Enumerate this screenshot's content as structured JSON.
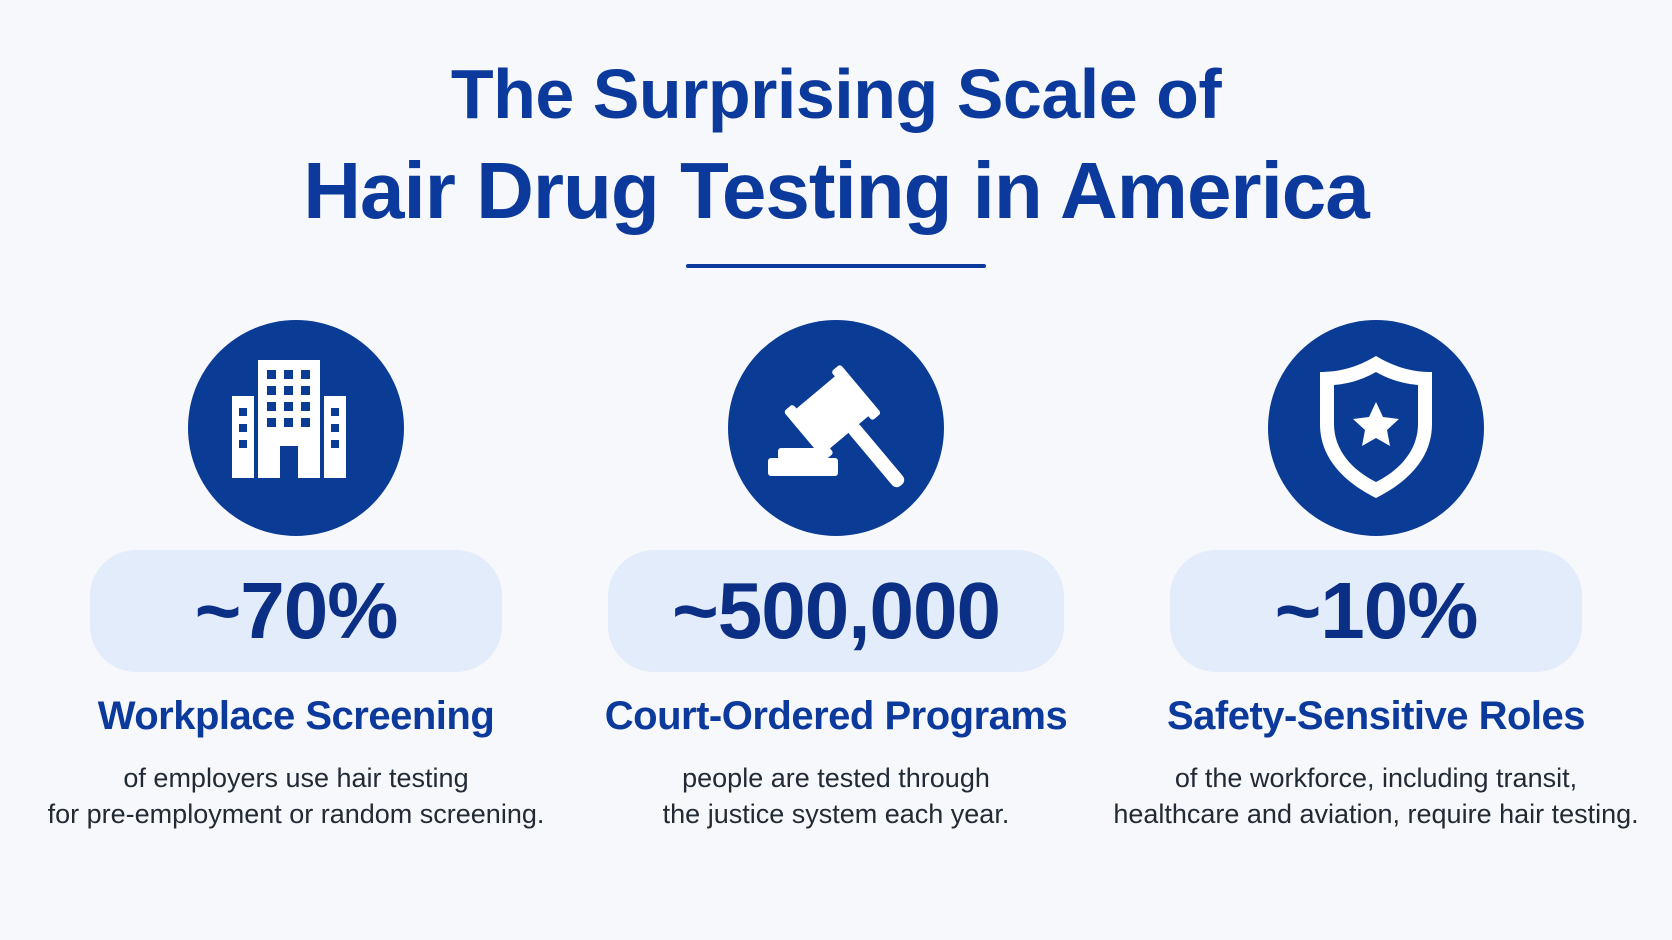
{
  "header": {
    "title_line1": "The Surprising Scale of",
    "title_line2": "Hair Drug Testing in America"
  },
  "colors": {
    "primary": "#0c3a9c",
    "icon_circle": "#0a3c96",
    "stat_pill": "#e3ecfb",
    "stat_text": "#0c2f86",
    "body_text": "#222a36",
    "background": "#f7f8fb"
  },
  "cards": [
    {
      "icon": "office-building-icon",
      "value": "~70%",
      "title": "Workplace Screening",
      "desc_line1": "of employers use hair testing",
      "desc_line2": "for pre-employment or random screening."
    },
    {
      "icon": "gavel-icon",
      "value": "~500,000",
      "title": "Court-Ordered Programs",
      "desc_line1": "people are tested through",
      "desc_line2": "the justice system each year."
    },
    {
      "icon": "shield-star-icon",
      "value": "~10%",
      "title": "Safety-Sensitive Roles",
      "desc_line1": "of the workforce, including transit,",
      "desc_line2": "healthcare and aviation, require hair testing."
    }
  ]
}
